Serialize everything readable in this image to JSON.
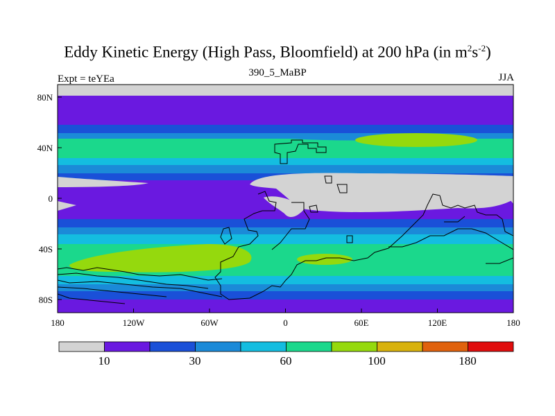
{
  "title": {
    "main": "Eddy Kinetic Energy (High Pass, Bloomfield) at 200 hPa (in m",
    "sup1": "2",
    "mid": "s",
    "sup2": "-2",
    "end": ")"
  },
  "subtitle": "390_5_MaBP",
  "left_label": "Expt = teYEa",
  "right_label": "JJA",
  "x_ticks": [
    "180",
    "120W",
    "60W",
    "0",
    "60E",
    "120E",
    "180"
  ],
  "y_ticks": [
    "80N",
    "40N",
    "0",
    "40S",
    "80S"
  ],
  "colorbar": {
    "colors": [
      "#d3d3d3",
      "#6a19e0",
      "#1a50d8",
      "#1b8ad8",
      "#14bde0",
      "#1bd88c",
      "#95d90d",
      "#d8b20d",
      "#e0620d",
      "#e00d0d"
    ],
    "labels": [
      "10",
      "30",
      "60",
      "100",
      "180"
    ]
  }
}
